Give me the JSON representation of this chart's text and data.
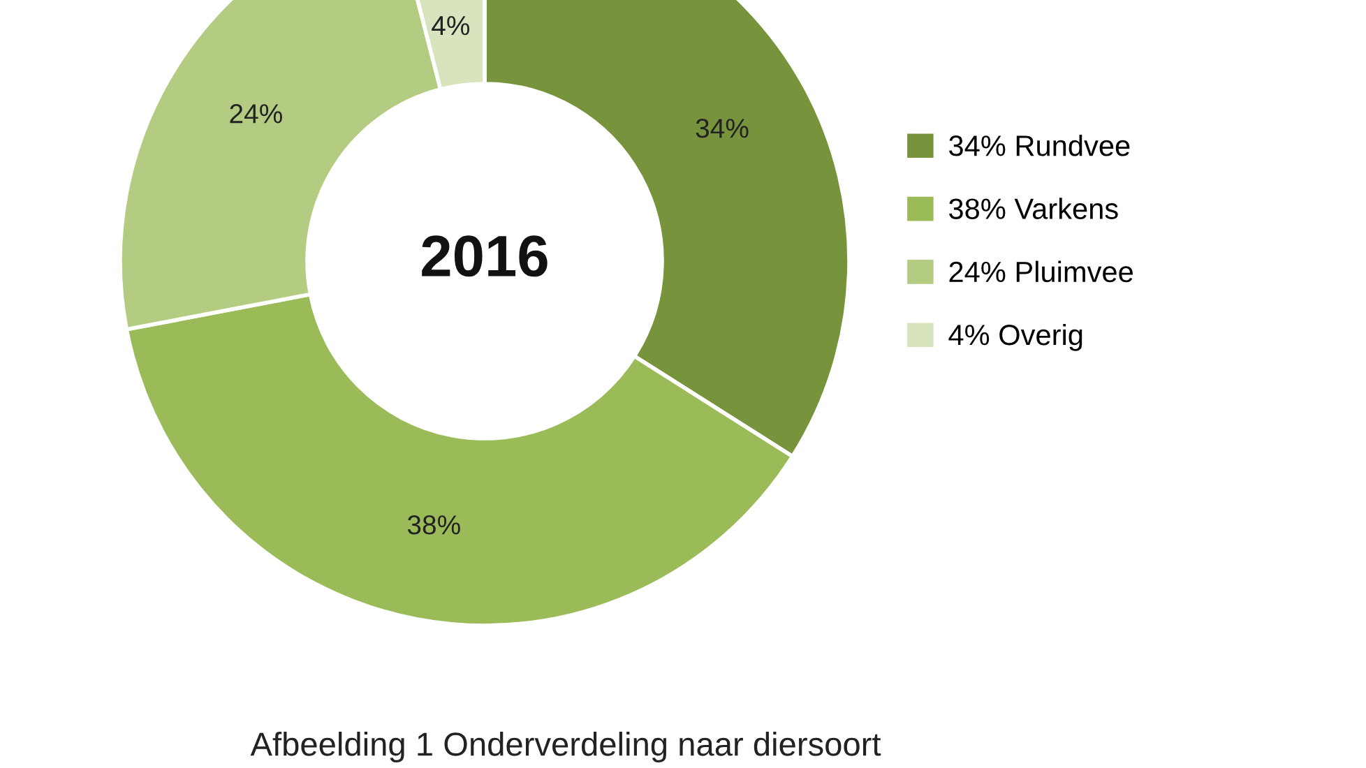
{
  "chart_data": {
    "type": "donut",
    "categories": [
      "34% Rundvee",
      "38% Varkens",
      "24% Pluimvee",
      "4% Overig"
    ],
    "values": [
      34,
      38,
      24,
      4
    ],
    "colors": [
      "#77933c",
      "#9bbb59",
      "#b3cc82",
      "#d7e4bd"
    ],
    "value_labels": [
      "34%",
      "38%",
      "24%",
      "4%"
    ],
    "legend": "right",
    "annotations": [
      "2016",
      "Afbeelding 1 Onderverdeling naar diersoort"
    ]
  }
}
